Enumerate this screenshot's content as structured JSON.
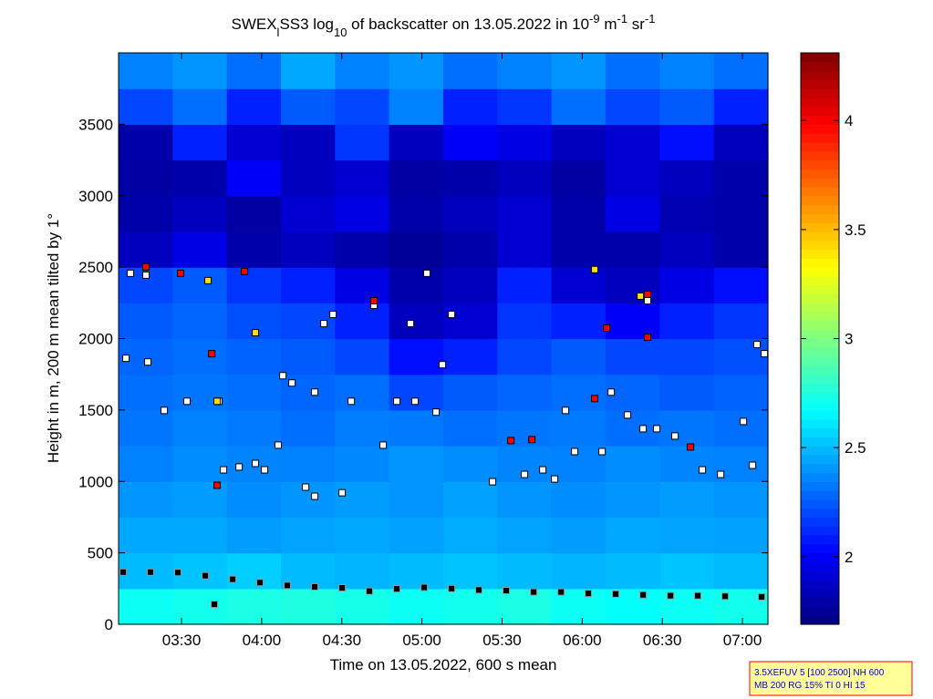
{
  "chart_data": {
    "type": "heatmap",
    "title": [
      {
        "text": "SWEX"
      },
      {
        "text": "l",
        "sub": true
      },
      {
        "text": "SS3 log"
      },
      {
        "text": "10",
        "sub": true
      },
      {
        "text": " of backscatter on 13.05.2022 in 10"
      },
      {
        "text": "-9",
        "sup": true
      },
      {
        "text": " m"
      },
      {
        "text": "-1",
        "sup": true
      },
      {
        "text": " sr"
      },
      {
        "text": "-1",
        "sup": true
      }
    ],
    "x_label": "Time on 13.05.2022, 600 s mean",
    "y_label": "Height in m, 200 m mean tilted by 1°",
    "xlim": [
      3.107,
      7.159
    ],
    "xticks": [
      {
        "value": 3.5,
        "label": "03:30"
      },
      {
        "value": 4.0,
        "label": "04:00"
      },
      {
        "value": 4.5,
        "label": "04:30"
      },
      {
        "value": 5.0,
        "label": "05:00"
      },
      {
        "value": 5.5,
        "label": "05:30"
      },
      {
        "value": 6.0,
        "label": "06:00"
      },
      {
        "value": 6.5,
        "label": "06:30"
      },
      {
        "value": 7.0,
        "label": "07:00"
      }
    ],
    "ylim": [
      0,
      4000
    ],
    "yticks": [
      0,
      500,
      1000,
      1500,
      2000,
      2500,
      3000,
      3500
    ],
    "colormap": "jet",
    "clim": [
      1.69,
      4.31
    ],
    "cticks": [
      2,
      2.5,
      3,
      3.5,
      4
    ],
    "z": [
      [
        2.7,
        2.72,
        2.74,
        2.75,
        2.73,
        2.7,
        2.72,
        2.74,
        2.7,
        2.68,
        2.7,
        2.72
      ],
      [
        2.5,
        2.52,
        2.55,
        2.5,
        2.48,
        2.5,
        2.52,
        2.5,
        2.48,
        2.5,
        2.52,
        2.5
      ],
      [
        2.45,
        2.45,
        2.42,
        2.44,
        2.45,
        2.43,
        2.46,
        2.44,
        2.42,
        2.45,
        2.44,
        2.43
      ],
      [
        2.4,
        2.42,
        2.38,
        2.4,
        2.42,
        2.4,
        2.43,
        2.4,
        2.38,
        2.4,
        2.42,
        2.4
      ],
      [
        2.35,
        2.38,
        2.36,
        2.35,
        2.37,
        2.4,
        2.38,
        2.36,
        2.35,
        2.38,
        2.36,
        2.35
      ],
      [
        2.32,
        2.35,
        2.33,
        2.3,
        2.34,
        2.33,
        2.3,
        2.32,
        2.33,
        2.3,
        2.32,
        2.3
      ],
      [
        2.3,
        2.32,
        2.3,
        2.28,
        2.3,
        2.2,
        2.25,
        2.28,
        2.3,
        2.28,
        2.25,
        2.27
      ],
      [
        2.28,
        2.3,
        2.27,
        2.25,
        2.2,
        2.05,
        2.1,
        2.2,
        2.25,
        2.2,
        2.2,
        2.22
      ],
      [
        2.25,
        2.28,
        2.22,
        2.2,
        2.1,
        1.85,
        1.9,
        2.15,
        2.1,
        2.0,
        2.1,
        2.15
      ],
      [
        2.2,
        2.25,
        2.15,
        2.1,
        1.95,
        1.8,
        1.85,
        2.1,
        1.9,
        1.85,
        1.95,
        2.05
      ],
      [
        1.85,
        1.95,
        1.8,
        1.85,
        1.8,
        1.75,
        1.8,
        1.9,
        1.8,
        1.8,
        1.85,
        1.8
      ],
      [
        1.8,
        1.85,
        1.78,
        1.9,
        1.95,
        1.8,
        1.85,
        1.9,
        1.8,
        1.95,
        1.82,
        1.8
      ],
      [
        1.78,
        1.8,
        2.0,
        1.85,
        1.9,
        1.78,
        1.8,
        1.85,
        1.78,
        1.9,
        1.85,
        1.8
      ],
      [
        1.8,
        2.1,
        1.9,
        1.85,
        2.15,
        1.85,
        2.0,
        1.95,
        1.85,
        1.9,
        2.05,
        1.85
      ],
      [
        2.2,
        2.3,
        2.1,
        2.25,
        2.2,
        2.35,
        2.1,
        2.15,
        2.3,
        2.2,
        2.25,
        2.1
      ],
      [
        2.35,
        2.4,
        2.3,
        2.45,
        2.35,
        2.4,
        2.3,
        2.35,
        2.4,
        2.3,
        2.35,
        2.3
      ]
    ],
    "series": [
      {
        "color": "#000000",
        "edge": "#999999",
        "x": [
          3.136,
          3.306,
          3.477,
          3.648,
          3.819,
          3.989,
          4.16,
          4.331,
          4.502,
          4.672,
          4.843,
          5.014,
          5.185,
          5.355,
          5.526,
          5.697,
          5.868,
          6.038,
          6.209,
          6.38,
          6.551,
          6.721,
          6.892,
          7.12,
          3.705
        ],
        "y": [
          365,
          365,
          362,
          340,
          315,
          292,
          272,
          262,
          255,
          232,
          248,
          258,
          250,
          240,
          236,
          226,
          226,
          216,
          212,
          206,
          200,
          200,
          196,
          192,
          140
        ]
      },
      {
        "color": "#ffffff",
        "edge": "#000000",
        "x": [
          3.181,
          3.278,
          3.153,
          3.289,
          3.392,
          3.534,
          3.733,
          3.762,
          3.859,
          3.961,
          4.018,
          4.103,
          4.132,
          4.189,
          4.274,
          4.331,
          4.331,
          4.388,
          4.445,
          4.502,
          4.559,
          4.701,
          4.758,
          4.843,
          4.929,
          4.957,
          5.031,
          5.088,
          5.128,
          5.185,
          5.441,
          5.64,
          5.754,
          5.828,
          5.896,
          5.953,
          6.124,
          6.181,
          6.283,
          6.38,
          6.465,
          6.579,
          6.75,
          6.864,
          7.006,
          7.063,
          7.091,
          7.137,
          6.408
        ],
        "y": [
          2457,
          2444,
          1862,
          1836,
          1497,
          1561,
          1561,
          1081,
          1101,
          1126,
          1081,
          1254,
          1740,
          1689,
          960,
          896,
          1625,
          2105,
          2169,
          921,
          1561,
          2233,
          1254,
          1561,
          2105,
          1561,
          2457,
          1485,
          1817,
          2169,
          998,
          1049,
          1081,
          1017,
          1497,
          1209,
          1209,
          1625,
          1465,
          1369,
          1369,
          1318,
          1081,
          1049,
          1420,
          1113,
          1958,
          1894,
          2265
        ]
      },
      {
        "color": "#ff0000",
        "edge": "#000000",
        "x": [
          3.278,
          3.494,
          3.688,
          3.722,
          3.893,
          4.701,
          5.555,
          5.686,
          6.078,
          6.153,
          6.408,
          6.408,
          6.676
        ],
        "y": [
          2502,
          2457,
          1894,
          973,
          2470,
          2265,
          1286,
          1293,
          1580,
          2073,
          2009,
          2310,
          1241
        ]
      },
      {
        "color": "#ffe000",
        "edge": "#000000",
        "x": [
          3.665,
          3.961,
          3.722,
          6.078,
          6.363
        ],
        "y": [
          2406,
          2041,
          1561,
          2483,
          2297
        ]
      }
    ],
    "annotation": [
      "3.5XEFUV 5 [100 2500] NH 600",
      "MB 200 RG 15% TI 0 HI 15"
    ]
  }
}
